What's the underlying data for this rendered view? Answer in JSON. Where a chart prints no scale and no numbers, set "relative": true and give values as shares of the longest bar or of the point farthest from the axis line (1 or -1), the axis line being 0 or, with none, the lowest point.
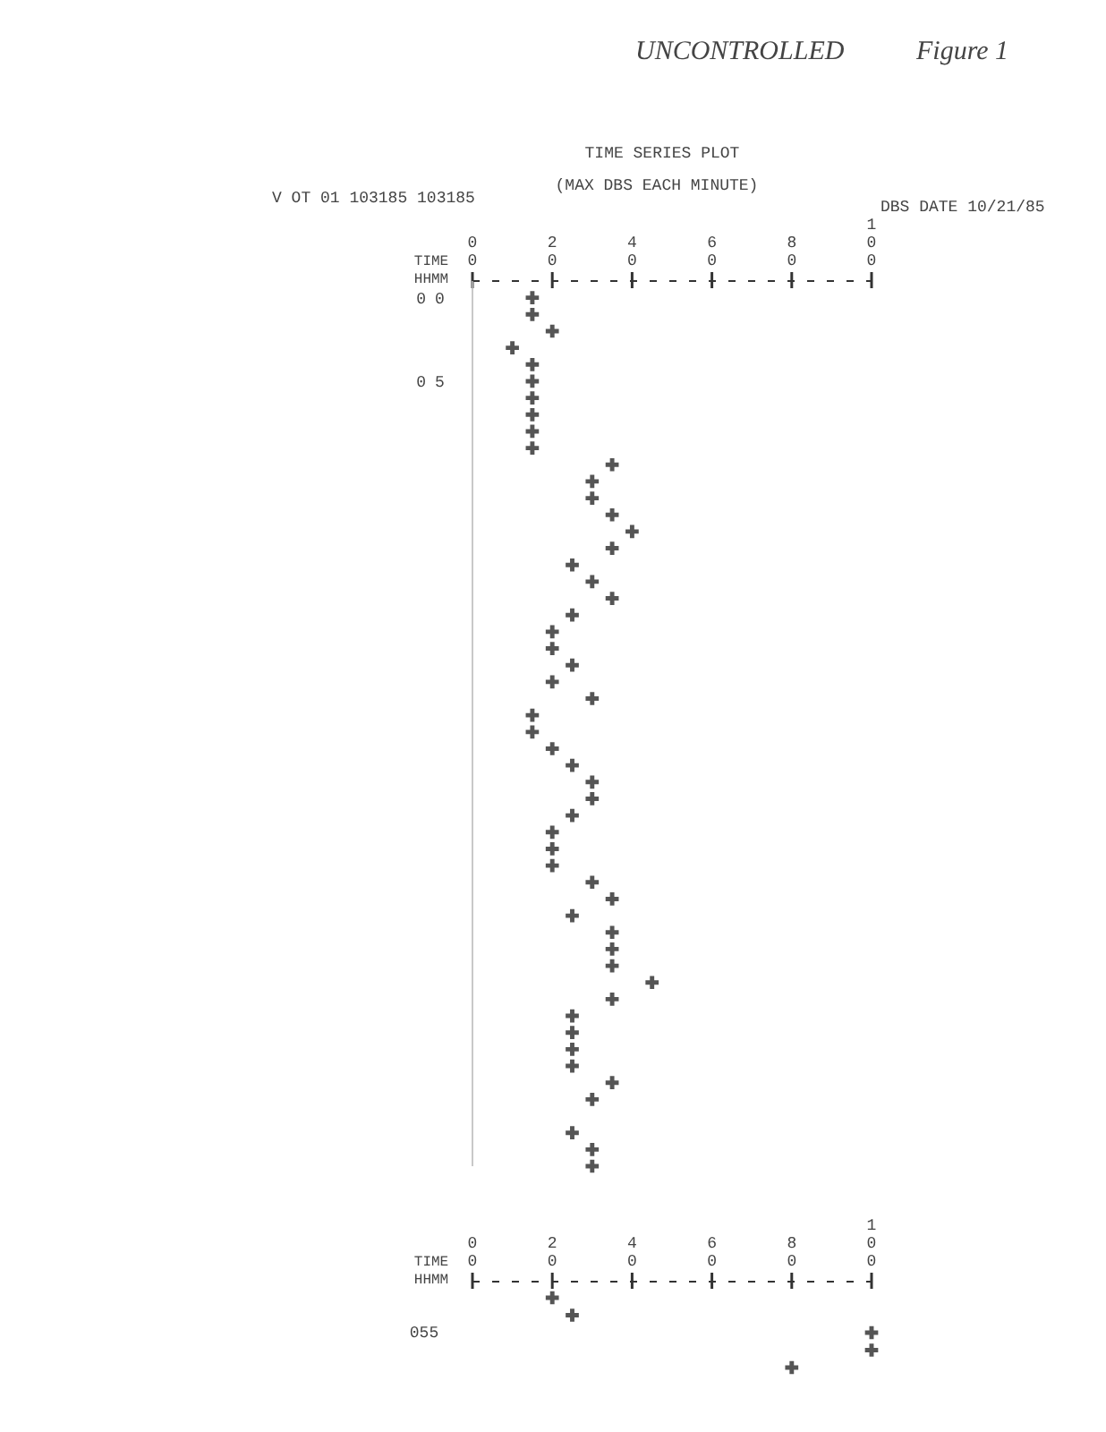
{
  "chart_data": [
    {
      "type": "scatter",
      "title": "TIME SERIES PLOT",
      "subtitle": "(MAX DBS EACH MINUTE)",
      "ylabel": "TIME HHMM",
      "annotations": [
        "V OT 01 103185 103185",
        "DBS DATE 10/21/85",
        "UNCONTROLLED",
        "Figure 1"
      ],
      "marker": "cross",
      "grid": false,
      "xlim": [
        0,
        100
      ],
      "xticks": [
        {
          "value": 0,
          "label": "00"
        },
        20,
        40,
        60,
        80,
        100
      ],
      "ylim": [
        52,
        -1
      ],
      "yticks": [
        {
          "value": 0,
          "label": "00"
        },
        {
          "value": 5,
          "label": "05"
        }
      ],
      "series": [
        {
          "color": "#555555",
          "x": [
            15,
            15,
            20,
            10,
            15,
            15,
            15,
            15,
            15,
            15,
            35,
            30,
            30,
            35,
            40,
            35,
            25,
            30,
            35,
            25,
            20,
            20,
            25,
            20,
            30,
            15,
            15,
            20,
            25,
            30,
            30,
            25,
            20,
            20,
            20,
            30,
            35,
            25,
            35,
            35,
            35,
            45,
            35,
            25,
            25,
            25,
            25,
            35,
            30,
            25,
            30,
            30
          ],
          "values": [
            0,
            1,
            2,
            3,
            4,
            5,
            6,
            7,
            8,
            9,
            10,
            11,
            12,
            13,
            14,
            15,
            16,
            17,
            18,
            19,
            20,
            21,
            22,
            23,
            24,
            25,
            26,
            27,
            28,
            29,
            30,
            31,
            32,
            33,
            34,
            35,
            36,
            37,
            38,
            39,
            40,
            41,
            42,
            43,
            44,
            45,
            46,
            47,
            48,
            50,
            51,
            52
          ]
        }
      ]
    },
    {
      "type": "scatter",
      "ylabel": "TIME HHMM",
      "marker": "cross",
      "grid": false,
      "relative": true,
      "annotations": [
        "055"
      ],
      "xlim": [
        0,
        100
      ],
      "xticks": [
        {
          "value": 0,
          "label": "00"
        },
        20,
        40,
        60,
        80,
        100
      ],
      "series": [
        {
          "color": "#555555",
          "x": [
            20,
            25,
            100,
            100,
            80
          ],
          "values": [
            1,
            0.75,
            0.5,
            0.25,
            0
          ]
        }
      ]
    }
  ]
}
